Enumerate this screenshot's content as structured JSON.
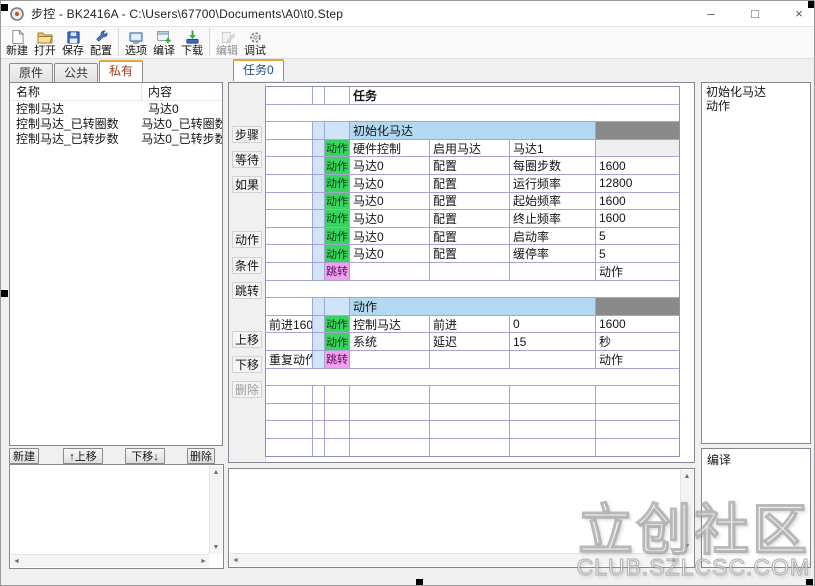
{
  "window": {
    "title": "步控  -  BK2416A  -  C:\\Users\\67700\\Documents\\A0\\t0.Step",
    "controls": {
      "minimize": "–",
      "maximize": "□",
      "close": "×"
    }
  },
  "toolbar": {
    "items": [
      {
        "label": "新建",
        "icon": "new-file-icon",
        "enabled": true
      },
      {
        "label": "打开",
        "icon": "open-folder-icon",
        "enabled": true
      },
      {
        "label": "保存",
        "icon": "save-icon",
        "enabled": true
      },
      {
        "label": "配置",
        "icon": "configure-icon",
        "enabled": true
      },
      {
        "separator": true
      },
      {
        "label": "选项",
        "icon": "options-icon",
        "enabled": true
      },
      {
        "label": "编译",
        "icon": "compile-icon",
        "enabled": true
      },
      {
        "label": "下载",
        "icon": "download-icon",
        "enabled": true
      },
      {
        "separator": true
      },
      {
        "label": "编辑",
        "icon": "edit-icon",
        "enabled": false
      },
      {
        "label": "调试",
        "icon": "debug-icon",
        "enabled": true
      }
    ]
  },
  "left_panel": {
    "tabs": [
      {
        "id": "components",
        "label": "原件",
        "active": false
      },
      {
        "id": "public",
        "label": "公共",
        "active": false
      },
      {
        "id": "private",
        "label": "私有",
        "active": true
      }
    ],
    "variable_table": {
      "headers": [
        "名称",
        "内容"
      ],
      "rows": [
        [
          "控制马达",
          "马达0"
        ],
        [
          "控制马达_已转圈数",
          "马达0_已转圈数"
        ],
        [
          "控制马达_已转步数",
          "马达0_已转步数"
        ]
      ]
    },
    "buttons": [
      {
        "id": "new",
        "label": "新建",
        "enabled": true
      },
      {
        "id": "move-up",
        "label": "↑上移",
        "enabled": true
      },
      {
        "id": "move-down",
        "label": "下移↓",
        "enabled": true
      },
      {
        "id": "delete",
        "label": "删除",
        "enabled": true
      }
    ]
  },
  "task_area": {
    "tab": "任务0",
    "side_buttons": [
      {
        "id": "step",
        "label": "步骤",
        "enabled": true
      },
      {
        "id": "wait",
        "label": "等待",
        "enabled": true
      },
      {
        "id": "if",
        "label": "如果",
        "enabled": true
      },
      {
        "id": "action",
        "label": "动作",
        "enabled": true
      },
      {
        "id": "condition",
        "label": "条件",
        "enabled": true
      },
      {
        "id": "jump",
        "label": "跳转",
        "enabled": true
      },
      {
        "id": "move-up",
        "label": "上移",
        "enabled": true
      },
      {
        "id": "move-down",
        "label": "下移",
        "enabled": true
      },
      {
        "id": "delete",
        "label": "删除",
        "enabled": false
      }
    ],
    "grid": {
      "title": "任务",
      "badge_labels": {
        "action": "动作",
        "jump": "跳转"
      },
      "rows": [
        {
          "type": "title"
        },
        {
          "type": "blank"
        },
        {
          "type": "section",
          "title": "初始化马达"
        },
        {
          "type": "item",
          "label": "",
          "badge": "action",
          "cells": [
            "硬件控制",
            "启用马达",
            "马达1",
            ""
          ],
          "value_gray": true
        },
        {
          "type": "item",
          "label": "",
          "badge": "action",
          "cells": [
            "马达0",
            "配置",
            "每圈步数",
            "1600"
          ]
        },
        {
          "type": "item",
          "label": "",
          "badge": "action",
          "cells": [
            "马达0",
            "配置",
            "运行频率",
            "12800"
          ]
        },
        {
          "type": "item",
          "label": "",
          "badge": "action",
          "cells": [
            "马达0",
            "配置",
            "起始频率",
            "1600"
          ]
        },
        {
          "type": "item",
          "label": "",
          "badge": "action",
          "cells": [
            "马达0",
            "配置",
            "终止频率",
            "1600"
          ]
        },
        {
          "type": "item",
          "label": "",
          "badge": "action",
          "cells": [
            "马达0",
            "配置",
            "启动率",
            "5"
          ]
        },
        {
          "type": "item",
          "label": "",
          "badge": "action",
          "cells": [
            "马达0",
            "配置",
            "缓停率",
            "5"
          ]
        },
        {
          "type": "item",
          "label": "",
          "badge": "jump",
          "cells": [
            "",
            "",
            "",
            "动作"
          ]
        },
        {
          "type": "blank"
        },
        {
          "type": "section",
          "title": "动作"
        },
        {
          "type": "item",
          "label": "前进160",
          "badge": "action",
          "cells": [
            "控制马达",
            "前进",
            "0",
            "1600"
          ]
        },
        {
          "type": "item",
          "label": "",
          "badge": "action",
          "cells": [
            "系统",
            "延迟",
            "15",
            "秒"
          ]
        },
        {
          "type": "item",
          "label": "重复动作",
          "badge": "jump",
          "cells": [
            "",
            "",
            "",
            "动作"
          ]
        },
        {
          "type": "blank"
        },
        {
          "type": "grid"
        },
        {
          "type": "grid"
        },
        {
          "type": "grid"
        },
        {
          "type": "grid"
        }
      ]
    }
  },
  "right_panel": {
    "outline": [
      "初始化马达",
      "动作"
    ],
    "compile_label": "编译"
  },
  "watermark": {
    "line1": "立创社区",
    "line2": "CLUB.SZLCSC.COM"
  },
  "icons": {
    "up": "▲",
    "down": "▼",
    "left": "◄",
    "right": "►"
  },
  "colors": {
    "section_blue": "#b3d9f2",
    "row_blue": "#cfe4f7",
    "action_green": "#3bd35f",
    "jump_pink": "#f0a2ee",
    "tab_accent_orange": "#e8a33d",
    "private_tab_text": "#a23b20",
    "task_tab_text": "#1b4a8a",
    "grid_line": "#a5a5d5",
    "section_end_gray": "#8a8a8a"
  }
}
